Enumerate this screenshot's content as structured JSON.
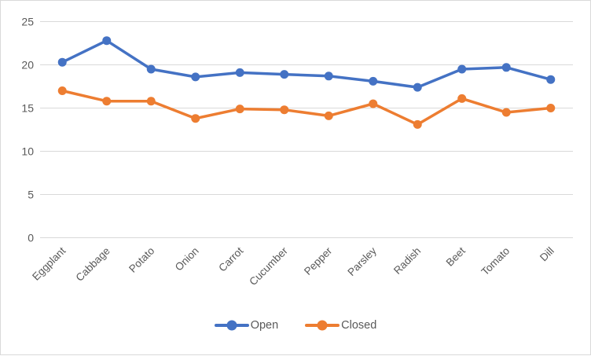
{
  "chart_data": {
    "type": "line",
    "title": "",
    "xlabel": "",
    "ylabel": "",
    "categories": [
      "Eggplant",
      "Cabbage",
      "Potato",
      "Onion",
      "Carrot",
      "Cucumber",
      "Pepper",
      "Parsley",
      "Radish",
      "Beet",
      "Tomato",
      "Dill"
    ],
    "series": [
      {
        "name": "Open",
        "color": "#4472C4",
        "marker": "circle",
        "values": [
          20.3,
          22.8,
          19.5,
          18.6,
          19.1,
          18.9,
          18.7,
          18.1,
          17.4,
          19.5,
          19.7,
          18.3
        ]
      },
      {
        "name": "Closed",
        "color": "#ED7D31",
        "marker": "circle",
        "values": [
          17.0,
          15.8,
          15.8,
          13.8,
          14.9,
          14.8,
          14.1,
          15.5,
          13.1,
          16.1,
          14.5,
          15.0
        ]
      }
    ],
    "ylim": [
      0,
      25
    ],
    "y_ticks": [
      0,
      5,
      10,
      15,
      20,
      25
    ],
    "grid": "horizontal",
    "legend_position": "bottom-center",
    "x_label_rotation_deg": 45,
    "axis_label_color": "#595959",
    "gridline_color": "#D9D9D9",
    "border_color": "#D9D9D9",
    "background": "#FFFFFF"
  }
}
